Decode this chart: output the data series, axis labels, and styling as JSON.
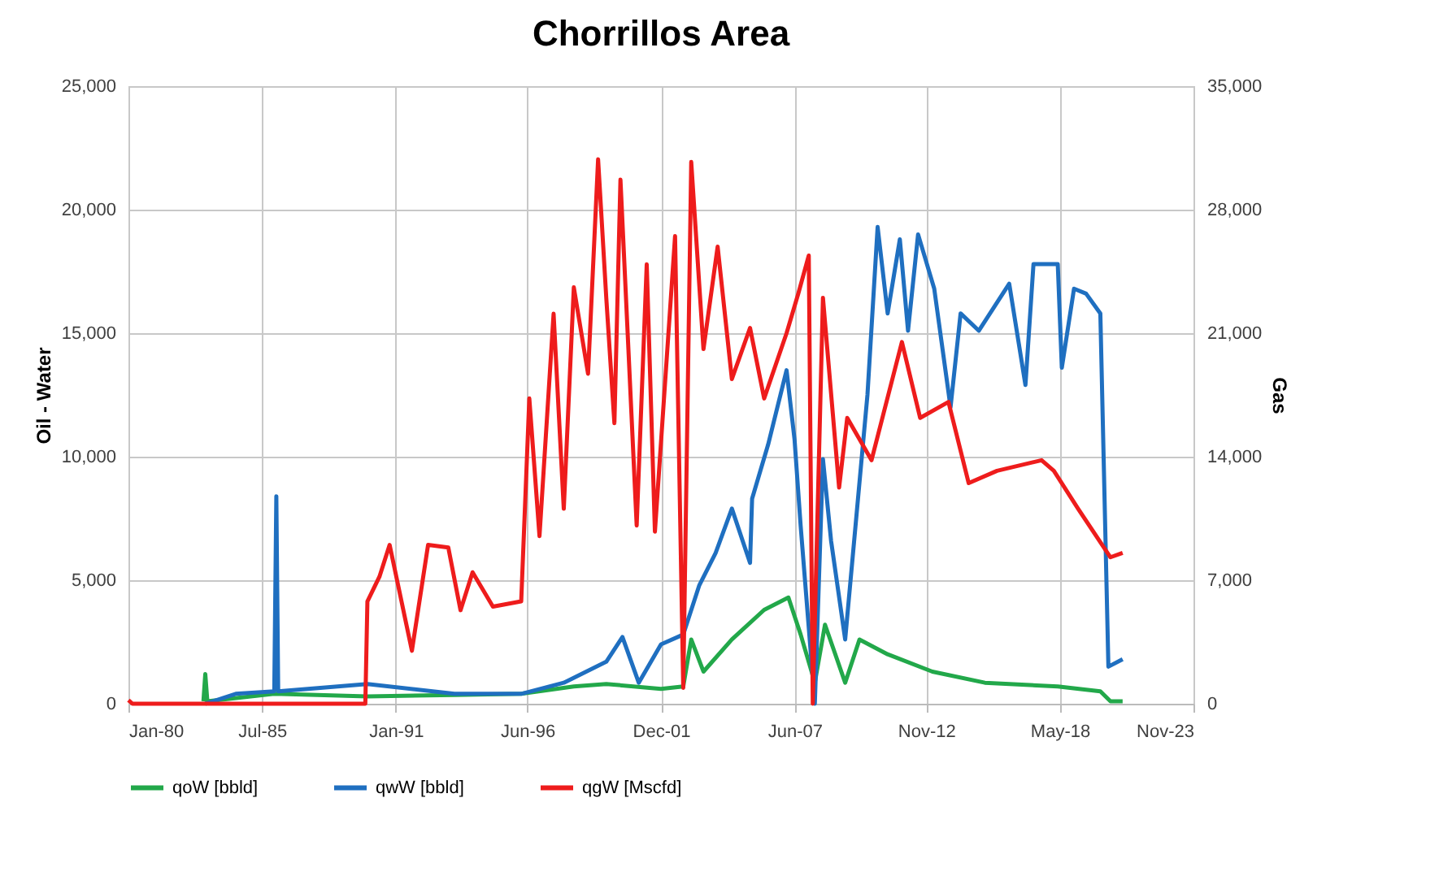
{
  "chart_data": {
    "type": "line",
    "title": "Chorrillos Area",
    "ylabel": "Oil - Water",
    "y2label": "Gas",
    "xlim": [
      "1980-01",
      "2023-11"
    ],
    "xticks": [
      {
        "value": "1980-01",
        "label": "Jan-80"
      },
      {
        "value": "1985-07",
        "label": "Jul-85"
      },
      {
        "value": "1991-01",
        "label": "Jan-91"
      },
      {
        "value": "1996-06",
        "label": "Jun-96"
      },
      {
        "value": "2001-12",
        "label": "Dec-01"
      },
      {
        "value": "2007-06",
        "label": "Jun-07"
      },
      {
        "value": "2012-11",
        "label": "Nov-12"
      },
      {
        "value": "2018-05",
        "label": "May-18"
      },
      {
        "value": "2023-11",
        "label": "Nov-23"
      }
    ],
    "ylim": [
      0,
      25000
    ],
    "yticks": [
      {
        "value": 0,
        "label": "0"
      },
      {
        "value": 5000,
        "label": "5,000"
      },
      {
        "value": 10000,
        "label": "10,000"
      },
      {
        "value": 15000,
        "label": "15,000"
      },
      {
        "value": 20000,
        "label": "20,000"
      },
      {
        "value": 25000,
        "label": "25,000"
      }
    ],
    "y2lim": [
      0,
      35000
    ],
    "y2ticks": [
      {
        "value": 0,
        "label": "0"
      },
      {
        "value": 7000,
        "label": "7,000"
      },
      {
        "value": 14000,
        "label": "14,000"
      },
      {
        "value": 21000,
        "label": "21,000"
      },
      {
        "value": 28000,
        "label": "28,000"
      },
      {
        "value": 35000,
        "label": "35,000"
      }
    ],
    "grid": true,
    "legend": "bottom",
    "line_style": "solid",
    "marker": "none",
    "series": [
      {
        "name": "qoW [bbld]",
        "color": "#22a84a",
        "x": [
          "1983-02",
          "1983-03",
          "1983-04",
          "1986-01",
          "1989-11",
          "1993-06",
          "1996-03",
          "1998-05",
          "1999-09",
          "2001-12",
          "2002-11",
          "2003-03",
          "2003-09",
          "2004-11",
          "2006-03",
          "2007-03",
          "2007-09",
          "2008-04",
          "2008-09",
          "2009-07",
          "2010-02",
          "2011-04",
          "2013-02",
          "2015-04",
          "2018-04",
          "2020-01",
          "2020-06",
          "2020-12"
        ],
        "values": [
          100,
          1200,
          100,
          400,
          300,
          350,
          400,
          700,
          800,
          600,
          700,
          2600,
          1300,
          2600,
          3800,
          4300,
          2800,
          850,
          3200,
          850,
          2600,
          2000,
          1300,
          850,
          700,
          500,
          100,
          100
        ]
      },
      {
        "name": "qwW [bbld]",
        "color": "#1f6fc0",
        "x": [
          "1983-03",
          "1984-06",
          "1986-01",
          "1986-02",
          "1986-03",
          "1989-11",
          "1993-06",
          "1996-03",
          "1997-12",
          "1999-09",
          "2000-05",
          "2001-01",
          "2001-12",
          "2002-11",
          "2003-07",
          "2004-03",
          "2004-11",
          "2005-08",
          "2005-09",
          "2006-05",
          "2007-02",
          "2007-06",
          "2007-09",
          "2008-04",
          "2008-08",
          "2008-12",
          "2009-07",
          "2010-06",
          "2010-11",
          "2011-04",
          "2011-10",
          "2012-02",
          "2012-07",
          "2013-03",
          "2013-11",
          "2014-04",
          "2015-01",
          "2016-04",
          "2016-12",
          "2017-04",
          "2018-04",
          "2018-06",
          "2018-12",
          "2019-06",
          "2020-01",
          "2020-05",
          "2020-12"
        ],
        "values": [
          0,
          400,
          500,
          8400,
          500,
          800,
          400,
          400,
          850,
          1700,
          2700,
          850,
          2400,
          2800,
          4800,
          6100,
          7900,
          5700,
          8300,
          10500,
          13500,
          10700,
          7200,
          0,
          9900,
          6600,
          2600,
          12500,
          19300,
          15800,
          18800,
          15100,
          19000,
          16800,
          12000,
          15800,
          15100,
          17000,
          12900,
          17800,
          17800,
          13600,
          16800,
          16600,
          15800,
          1500,
          1800
        ]
      },
      {
        "name": "qgW [Mscfd]",
        "color": "#ee1c1c",
        "axis": "y2",
        "x": [
          "1980-01",
          "1980-03",
          "1989-10",
          "1989-11",
          "1990-05",
          "1990-10",
          "1991-09",
          "1992-05",
          "1993-03",
          "1993-09",
          "1994-03",
          "1995-01",
          "1996-03",
          "1996-07",
          "1996-12",
          "1997-07",
          "1997-12",
          "1998-05",
          "1998-12",
          "1999-05",
          "1999-09",
          "2000-01",
          "2000-04",
          "2000-12",
          "2001-05",
          "2001-09",
          "2002-07",
          "2002-11",
          "2003-03",
          "2003-09",
          "2004-04",
          "2004-11",
          "2005-08",
          "2006-03",
          "2007-02",
          "2007-08",
          "2008-01",
          "2008-03",
          "2008-08",
          "2009-04",
          "2009-08",
          "2010-08",
          "2011-11",
          "2012-08",
          "2013-10",
          "2014-08",
          "2015-10",
          "2017-08",
          "2018-02",
          "2019-02",
          "2020-06",
          "2020-12"
        ],
        "values": [
          200,
          0,
          0,
          5800,
          7200,
          9000,
          3000,
          9000,
          8850,
          5300,
          7450,
          5500,
          5800,
          17300,
          9500,
          22100,
          11050,
          23600,
          18700,
          30850,
          23000,
          15900,
          29700,
          10100,
          24900,
          9750,
          26500,
          900,
          30700,
          20100,
          25900,
          18400,
          21300,
          17300,
          21000,
          23300,
          25400,
          0,
          23000,
          12250,
          16200,
          13800,
          20500,
          16200,
          17100,
          12500,
          13200,
          13800,
          13200,
          11050,
          8300,
          8550
        ]
      }
    ]
  }
}
